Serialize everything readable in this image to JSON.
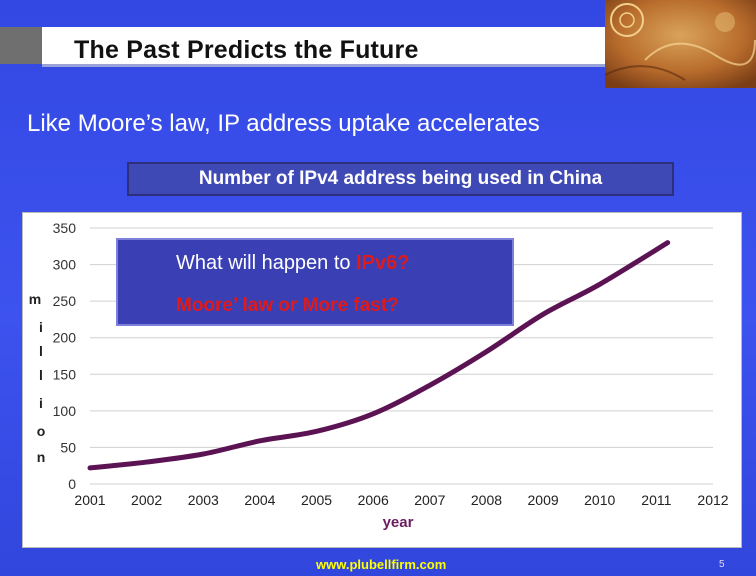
{
  "header": {
    "title": "The Past Predicts the Future"
  },
  "subtitle": "Like Moore’s law, IP address uptake accelerates",
  "chart_title": "Number of IPv4 address being used in China",
  "callout": {
    "question_prefix": "What will happen to ",
    "question_highlight": "IPv6?",
    "answer": "Moore’ law or More fast?"
  },
  "footer": {
    "url": "www.plubellfirm.com",
    "page": "5"
  },
  "colors": {
    "background": "#3d52ee",
    "line": "#5b1353",
    "callout": "#3a40b4",
    "highlight": "#e11919",
    "url": "#ffff00"
  },
  "chart_data": {
    "type": "line",
    "title": "Number of IPv4 address being used in China",
    "xlabel": "year",
    "ylabel": "million",
    "categories": [
      "2001",
      "2002",
      "2003",
      "2004",
      "2005",
      "2006",
      "2007",
      "2008",
      "2009",
      "2010",
      "2011",
      "2012"
    ],
    "yticks": [
      "0",
      "50",
      "100",
      "150",
      "200",
      "250",
      "300",
      "350"
    ],
    "ylim": [
      0,
      350
    ],
    "grid": "horizontal",
    "series": [
      {
        "x": [
          2001,
          2002,
          2003,
          2004,
          2005,
          2006,
          2007,
          2008,
          2009,
          2010,
          2011.2
        ],
        "values": [
          22,
          30,
          41,
          59,
          72,
          96,
          135,
          181,
          232,
          273,
          330
        ]
      }
    ]
  }
}
